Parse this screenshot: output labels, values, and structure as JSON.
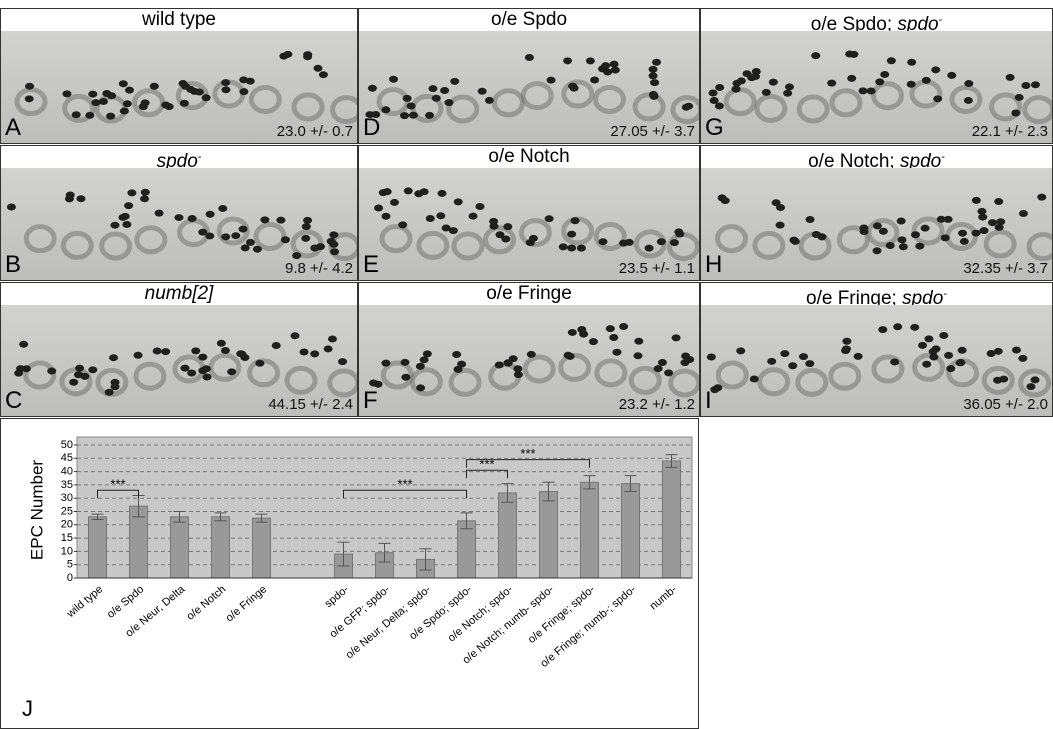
{
  "panels": [
    {
      "letter": "A",
      "stat": "23.0 +/- 0.7",
      "title": [
        {
          "text": "wild type",
          "style": "normal"
        }
      ]
    },
    {
      "letter": "D",
      "stat": "27.05 +/- 3.7",
      "title": [
        {
          "text": "o/e Spdo",
          "style": "normal"
        }
      ]
    },
    {
      "letter": "G",
      "stat": "22.1 +/- 2.3",
      "title": [
        {
          "text": "o/e Spdo; ",
          "style": "normal"
        },
        {
          "text": "spdo",
          "style": "italic"
        },
        {
          "text": "-",
          "style": "sup"
        }
      ]
    },
    {
      "letter": "B",
      "stat": "9.8 +/- 4.2",
      "title": [
        {
          "text": "spdo",
          "style": "italic"
        },
        {
          "text": "-",
          "style": "sup"
        }
      ]
    },
    {
      "letter": "E",
      "stat": "23.5 +/- 1.1",
      "title": [
        {
          "text": "o/e Notch",
          "style": "normal"
        }
      ]
    },
    {
      "letter": "H",
      "stat": "32.35 +/- 3.7",
      "title": [
        {
          "text": "o/e Notch; ",
          "style": "normal"
        },
        {
          "text": "spdo",
          "style": "italic"
        },
        {
          "text": "-",
          "style": "sup"
        }
      ]
    },
    {
      "letter": "C",
      "stat": "44.15 +/- 2.4",
      "title": [
        {
          "text": "numb[2]",
          "style": "italic"
        }
      ]
    },
    {
      "letter": "F",
      "stat": "23.2 +/- 1.2",
      "title": [
        {
          "text": "o/e Fringe",
          "style": "normal"
        }
      ]
    },
    {
      "letter": "I",
      "stat": "36.05 +/- 2.0",
      "title": [
        {
          "text": "o/e Fringe; ",
          "style": "normal"
        },
        {
          "text": "spdo",
          "style": "italic"
        },
        {
          "text": "-",
          "style": "sup"
        }
      ]
    }
  ],
  "chart_data": {
    "type": "bar",
    "letter": "J",
    "ylabel": "EPC Number",
    "categories": [
      "wild type",
      "o/e Spdo",
      "o/e Neur, Delta",
      "o/e Notch",
      "o/e Fringe",
      null,
      "spdo-",
      "o/e GFP; spdo-",
      "o/e Neur, Delta; spdo-",
      "o/e Spdo; spdo-",
      "o/e Notch; spdo-",
      "o/e Notch; numb- spdo-",
      "o/e Fringe; spdo-",
      "o/e Fringe; numb-; spdo-",
      "numb-"
    ],
    "values": [
      23,
      27,
      23,
      23,
      22.5,
      null,
      9,
      9.5,
      7,
      21.5,
      32,
      32.5,
      36,
      35.5,
      44
    ],
    "errors": [
      1,
      4,
      2,
      1.5,
      1.5,
      null,
      4.5,
      3.5,
      4,
      3,
      3.5,
      3.5,
      2.5,
      3,
      2.4
    ],
    "color": "#999999",
    "ylim": [
      0,
      50
    ],
    "yticks": [
      0,
      5,
      10,
      15,
      20,
      25,
      30,
      35,
      40,
      45,
      50
    ],
    "grid": true,
    "significance": [
      {
        "from": "wild type",
        "to": "o/e Spdo",
        "y": 33,
        "label": "***"
      },
      {
        "from": "spdo-",
        "to": "o/e Spdo; spdo-",
        "y": 33,
        "label": "***"
      },
      {
        "from": "o/e Spdo; spdo-",
        "to": "o/e Notch; spdo-",
        "y": 40.5,
        "label": "***"
      },
      {
        "from": "o/e Spdo; spdo-",
        "to": "o/e Fringe; spdo-",
        "y": 44.5,
        "label": "***"
      }
    ]
  }
}
